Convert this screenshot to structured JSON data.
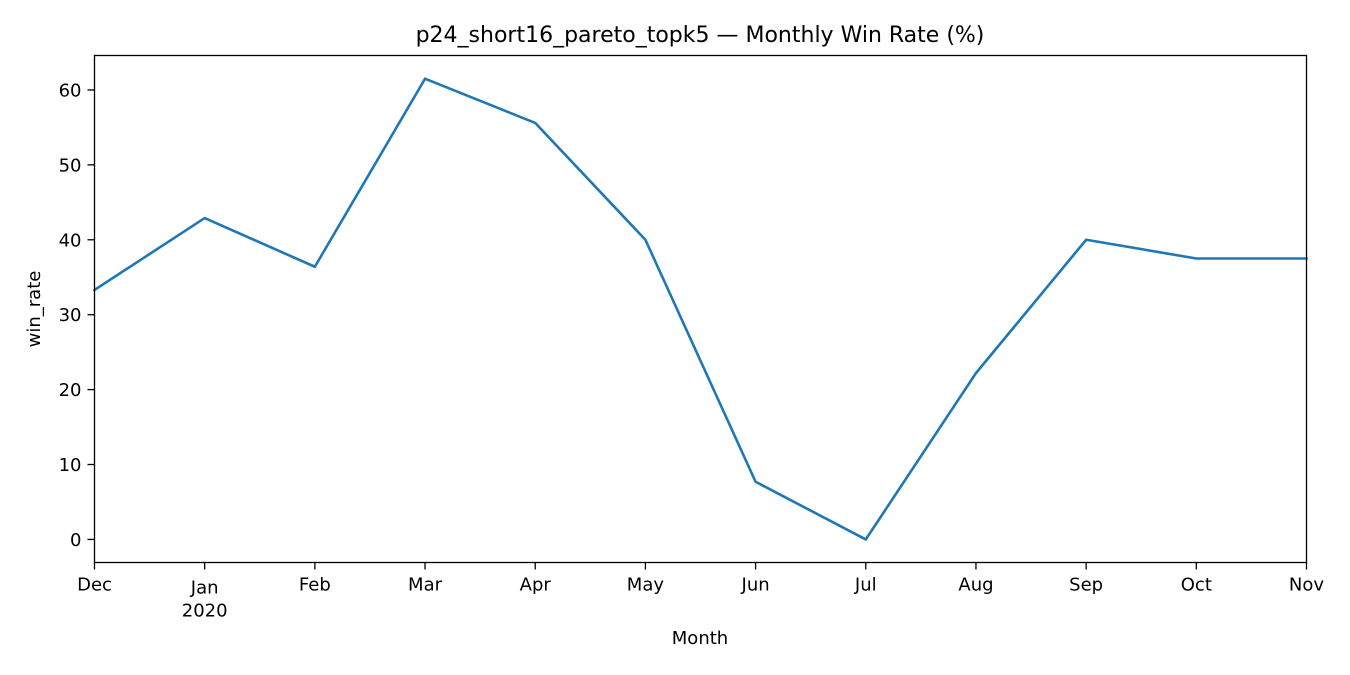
{
  "chart_data": {
    "type": "line",
    "title": "p24_short16_pareto_topk5 — Monthly Win Rate (%)",
    "xlabel": "Month",
    "ylabel": "win_rate",
    "x": [
      "2019-12",
      "2020-01",
      "2020-02",
      "2020-03",
      "2020-04",
      "2020-05",
      "2020-06",
      "2020-07",
      "2020-08",
      "2020-09",
      "2020-10",
      "2020-11"
    ],
    "x_tick_labels": [
      "Dec",
      "Jan",
      "Feb",
      "Mar",
      "Apr",
      "May",
      "Jun",
      "Jul",
      "Aug",
      "Sep",
      "Oct",
      "Nov"
    ],
    "x_tick_sublabels": [
      "",
      "2020",
      "",
      "",
      "",
      "",
      "",
      "",
      "",
      "",
      "",
      ""
    ],
    "series": [
      {
        "values": [
          33.3,
          42.9,
          36.4,
          61.5,
          55.6,
          40.0,
          7.7,
          0.0,
          22.2,
          40.0,
          37.5,
          37.5
        ],
        "color": "#1f77b4"
      }
    ],
    "ylim": [
      -3.08,
      64.6
    ],
    "y_ticks": [
      0,
      10,
      20,
      30,
      40,
      50,
      60
    ],
    "grid": false,
    "legend": "none"
  }
}
